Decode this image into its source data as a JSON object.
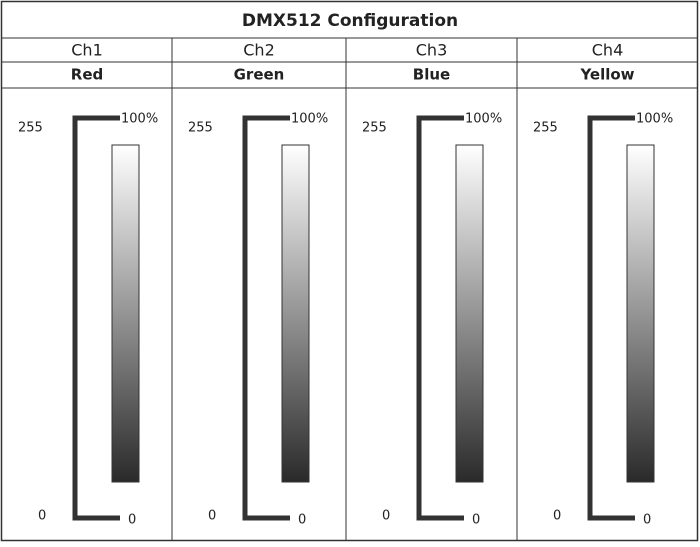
{
  "title": "DMX512 Configuration",
  "channels": [
    {
      "channel": "Ch1",
      "color": "Red",
      "dmx_max": "255",
      "dmx_min": "0",
      "level_max": "100%",
      "level_min": "0"
    },
    {
      "channel": "Ch2",
      "color": "Green",
      "dmx_max": "255",
      "dmx_min": "0",
      "level_max": "100%",
      "level_min": "0"
    },
    {
      "channel": "Ch3",
      "color": "Blue",
      "dmx_max": "255",
      "dmx_min": "0",
      "level_max": "100%",
      "level_min": "0"
    },
    {
      "channel": "Ch4",
      "color": "Yellow",
      "dmx_max": "255",
      "dmx_min": "0",
      "level_max": "100%",
      "level_min": "0"
    }
  ]
}
